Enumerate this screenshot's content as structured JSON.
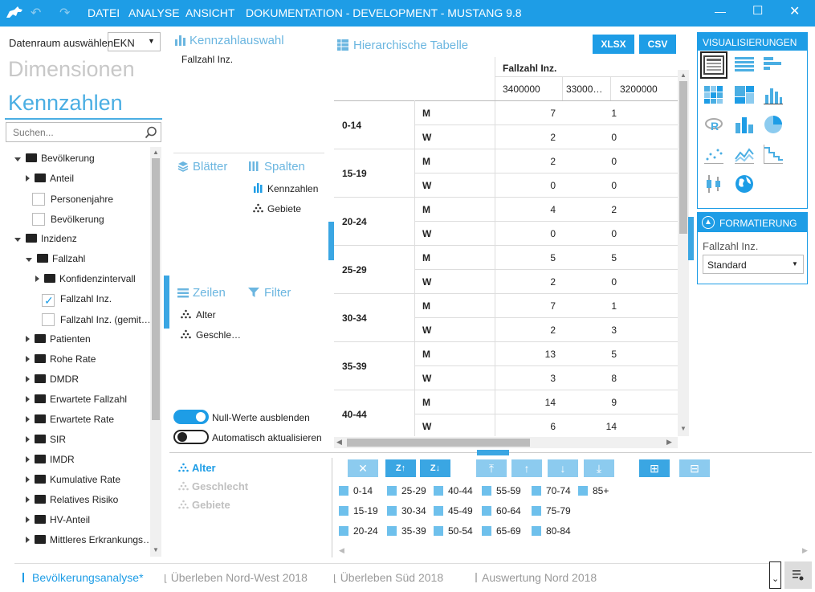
{
  "titlebar": {
    "menu": [
      "DATEI",
      "ANALYSE",
      "ANSICHT"
    ],
    "title": "DOKUMENTATION - DEVELOPMENT - MUSTANG 9.8",
    "colors": {
      "accent": "#1e9de6"
    }
  },
  "left": {
    "datenraum_label": "Datenraum auswählen",
    "datenraum_value": "EKN",
    "dimensionen_label": "Dimensionen",
    "kennzahlen_label": "Kennzahlen",
    "search_placeholder": "Suchen...",
    "tree": [
      {
        "label": "Bevölkerung",
        "type": "folder-open"
      },
      {
        "label": "Anteil",
        "type": "folder"
      },
      {
        "label": "Personenjahre",
        "type": "check"
      },
      {
        "label": "Bevölkerung",
        "type": "check"
      },
      {
        "label": "Inzidenz",
        "type": "folder-open"
      },
      {
        "label": "Fallzahl",
        "type": "folder-open"
      },
      {
        "label": "Konfidenzintervall",
        "type": "folder"
      },
      {
        "label": "Fallzahl Inz.",
        "type": "check-checked"
      },
      {
        "label": "Fallzahl Inz. (gemit…",
        "type": "check"
      },
      {
        "label": "Patienten",
        "type": "folder"
      },
      {
        "label": "Rohe Rate",
        "type": "folder"
      },
      {
        "label": "DMDR",
        "type": "folder"
      },
      {
        "label": "Erwartete Fallzahl",
        "type": "folder"
      },
      {
        "label": "Erwartete Rate",
        "type": "folder"
      },
      {
        "label": "SIR",
        "type": "folder"
      },
      {
        "label": "IMDR",
        "type": "folder"
      },
      {
        "label": "Kumulative Rate",
        "type": "folder"
      },
      {
        "label": "Relatives Risiko",
        "type": "folder"
      },
      {
        "label": "HV-Anteil",
        "type": "folder"
      },
      {
        "label": "Mittleres Erkrankungs…",
        "type": "folder"
      }
    ]
  },
  "middle": {
    "kennzahlauswahl_label": "Kennzahlauswahl",
    "kennzahlauswahl_item": "Fallzahl Inz.",
    "blaetter_label": "Blätter",
    "spalten_label": "Spalten",
    "spalten_items": [
      "Kennzahlen",
      "Gebiete"
    ],
    "zeilen_label": "Zeilen",
    "filter_label": "Filter",
    "zeilen_items": [
      "Alter",
      "Geschle…"
    ],
    "toggle1_label": "Null-Werte ausblenden",
    "toggle2_label": "Automatisch aktualisieren",
    "toggle1_on": true,
    "toggle2_on": false
  },
  "table": {
    "title": "Hierarchische Tabelle",
    "xlsx_label": "XLSX",
    "csv_label": "CSV",
    "measure_header": "Fallzahl Inz.",
    "col_headers": [
      "3400000",
      "33000…",
      "3200000"
    ],
    "rows": [
      {
        "age": "0-14",
        "m": [
          "7",
          "1"
        ],
        "w": [
          "2",
          "0"
        ]
      },
      {
        "age": "15-19",
        "m": [
          "2",
          "0"
        ],
        "w": [
          "0",
          "0"
        ]
      },
      {
        "age": "20-24",
        "m": [
          "4",
          "2"
        ],
        "w": [
          "0",
          "0"
        ]
      },
      {
        "age": "25-29",
        "m": [
          "5",
          "5"
        ],
        "w": [
          "2",
          "0"
        ]
      },
      {
        "age": "30-34",
        "m": [
          "7",
          "1"
        ],
        "w": [
          "2",
          "3"
        ]
      },
      {
        "age": "35-39",
        "m": [
          "13",
          "5"
        ],
        "w": [
          "3",
          "8"
        ]
      },
      {
        "age": "40-44",
        "m": [
          "14",
          "9"
        ],
        "w": [
          "6",
          "14"
        ]
      }
    ],
    "sex_m": "M",
    "sex_w": "W"
  },
  "right": {
    "vis_label": "VISUALISIERUNGEN",
    "format_label": "FORMATIERUNG",
    "format_field_label": "Fallzahl Inz.",
    "format_value": "Standard"
  },
  "bottom": {
    "dims": [
      "Alter",
      "Geschlecht",
      "Gebiete"
    ],
    "legend_cols": [
      [
        "0-14",
        "15-19",
        "20-24"
      ],
      [
        "25-29",
        "30-34",
        "35-39"
      ],
      [
        "40-44",
        "45-49",
        "50-54"
      ],
      [
        "55-59",
        "60-64",
        "65-69"
      ],
      [
        "70-74",
        "75-79",
        "80-84"
      ],
      [
        "85+"
      ]
    ]
  },
  "tabs": [
    "Bevölkerungsanalyse*",
    "Überleben Nord-West 2018",
    "Überleben Süd 2018",
    "Auswertung Nord 2018"
  ]
}
